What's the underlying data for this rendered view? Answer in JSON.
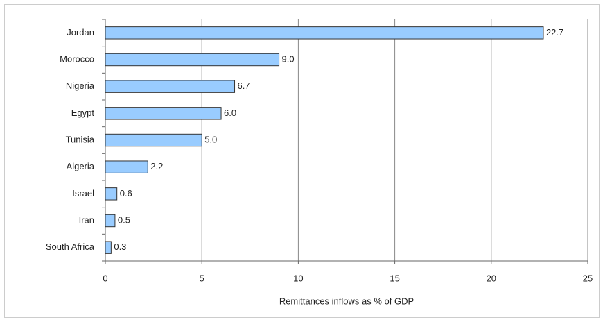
{
  "chart_data": {
    "type": "bar",
    "orientation": "horizontal",
    "x_label": "Remittances inflows as % of GDP",
    "categories": [
      "Jordan",
      "Morocco",
      "Nigeria",
      "Egypt",
      "Tunisia",
      "Algeria",
      "Israel",
      "Iran",
      "South Africa"
    ],
    "values": [
      22.7,
      9.0,
      6.7,
      6.0,
      5.0,
      2.2,
      0.6,
      0.5,
      0.3
    ],
    "value_labels": [
      "22.7",
      "9.0",
      "6.7",
      "6.0",
      "5.0",
      "2.2",
      "0.6",
      "0.5",
      "0.3"
    ],
    "color": "#99ccff",
    "xlim": [
      0,
      25
    ],
    "xticks": [
      0,
      5,
      10,
      15,
      20,
      25
    ],
    "grid": true
  }
}
